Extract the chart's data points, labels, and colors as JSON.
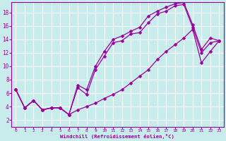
{
  "xlabel": "Windchill (Refroidissement éolien,°C)",
  "background_color": "#c8ecec",
  "grid_color": "#ffffff",
  "line_color": "#990099",
  "xlim": [
    -0.5,
    23.5
  ],
  "ylim": [
    1,
    19.5
  ],
  "xticks": [
    0,
    1,
    2,
    3,
    4,
    5,
    6,
    7,
    8,
    9,
    10,
    11,
    12,
    13,
    14,
    15,
    16,
    17,
    18,
    19,
    20,
    21,
    22,
    23
  ],
  "yticks": [
    2,
    4,
    6,
    8,
    10,
    12,
    14,
    16,
    18
  ],
  "line1_x": [
    0,
    1,
    2,
    3,
    4,
    5,
    6,
    7,
    8,
    9,
    10,
    11,
    12,
    13,
    14,
    15,
    16,
    17,
    18,
    19,
    20,
    21,
    22,
    23
  ],
  "line1_y": [
    6.5,
    3.8,
    4.9,
    3.5,
    3.8,
    3.8,
    2.8,
    6.8,
    5.8,
    9.5,
    11.5,
    13.5,
    13.8,
    14.8,
    15.0,
    16.5,
    17.8,
    18.2,
    19.0,
    19.2,
    15.8,
    12.0,
    13.5,
    13.8
  ],
  "line2_x": [
    0,
    1,
    2,
    3,
    4,
    5,
    6,
    7,
    8,
    9,
    10,
    11,
    12,
    13,
    14,
    15,
    16,
    17,
    18,
    19,
    20,
    21,
    22,
    23
  ],
  "line2_y": [
    6.5,
    3.8,
    4.9,
    3.5,
    3.8,
    3.8,
    2.8,
    7.2,
    6.5,
    10.0,
    12.2,
    14.0,
    14.5,
    15.2,
    15.8,
    17.5,
    18.2,
    18.8,
    19.3,
    19.5,
    16.2,
    12.5,
    14.2,
    13.8
  ],
  "line3_x": [
    0,
    1,
    2,
    3,
    4,
    5,
    6,
    7,
    8,
    9,
    10,
    11,
    12,
    13,
    14,
    15,
    16,
    17,
    18,
    19,
    20,
    21,
    22,
    23
  ],
  "line3_y": [
    6.5,
    3.8,
    4.9,
    3.5,
    3.8,
    3.8,
    2.8,
    3.5,
    4.0,
    4.5,
    5.2,
    5.8,
    6.5,
    7.5,
    8.5,
    9.5,
    11.0,
    12.2,
    13.2,
    14.2,
    15.5,
    10.5,
    12.2,
    13.8
  ]
}
